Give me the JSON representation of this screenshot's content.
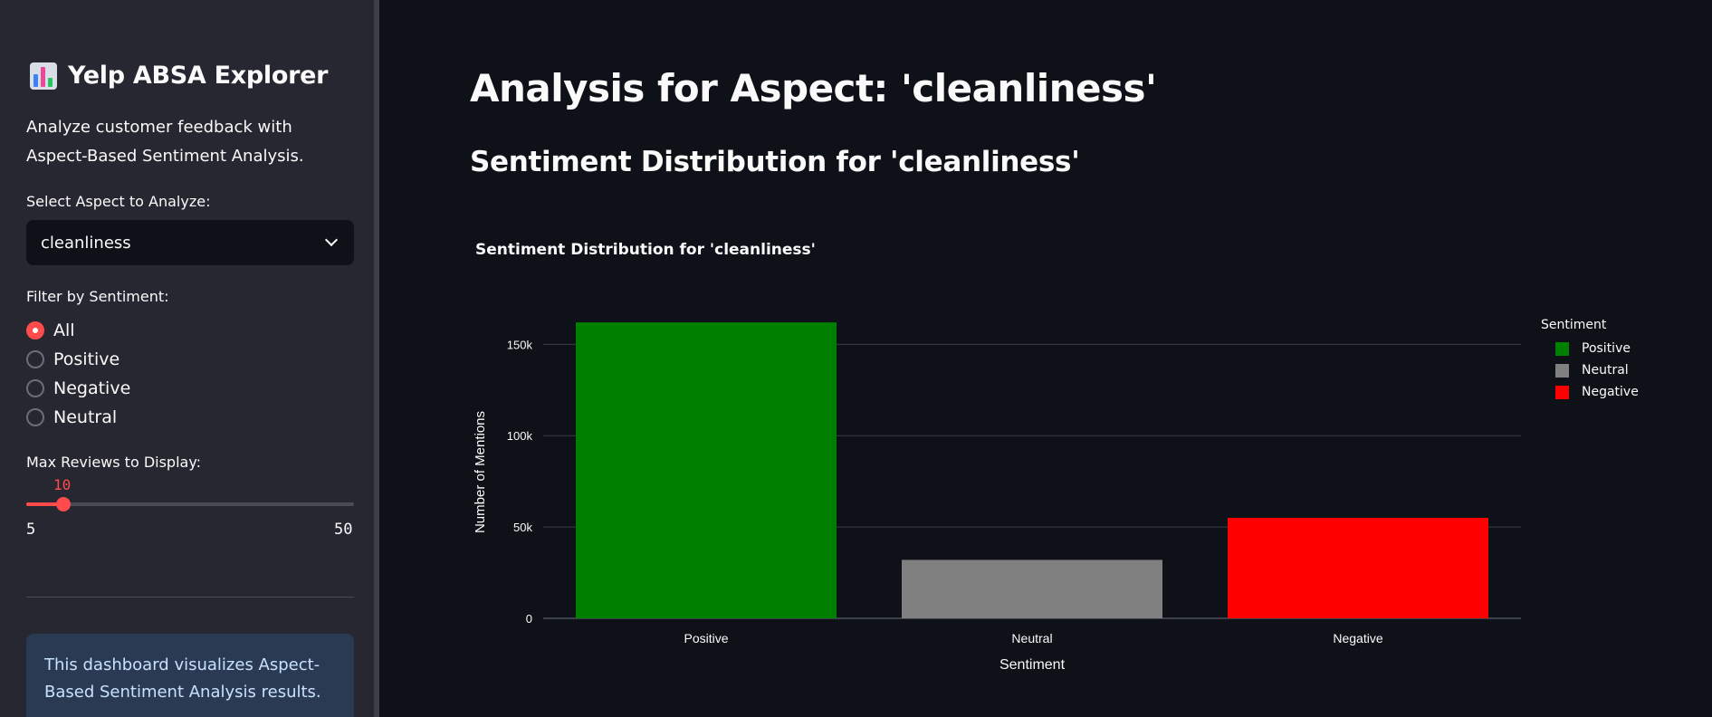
{
  "sidebar": {
    "app_title": "Yelp ABSA Explorer",
    "app_icon": "bar-chart-icon",
    "description": "Analyze customer feedback with Aspect-Based Sentiment Analysis.",
    "aspect_select": {
      "label": "Select Aspect to Analyze:",
      "value": "cleanliness"
    },
    "sentiment_filter": {
      "label": "Filter by Sentiment:",
      "options": [
        "All",
        "Positive",
        "Negative",
        "Neutral"
      ],
      "selected": "All"
    },
    "max_reviews": {
      "label": "Max Reviews to Display:",
      "value": "10",
      "min": "5",
      "max": "50",
      "fill_fraction": 0.111
    },
    "info": "This dashboard visualizes Aspect-Based Sentiment Analysis results."
  },
  "main": {
    "title": "Analysis for Aspect: 'cleanliness'",
    "subtitle": "Sentiment Distribution for 'cleanliness'"
  },
  "colors": {
    "accent": "#ff4b4b",
    "positive": "#008000",
    "neutral": "#808080",
    "negative": "#ff0000"
  },
  "chart_data": {
    "type": "bar",
    "title": "Sentiment Distribution for 'cleanliness'",
    "xlabel": "Sentiment",
    "ylabel": "Number of Mentions",
    "categories": [
      "Positive",
      "Neutral",
      "Negative"
    ],
    "values": [
      162000,
      32000,
      55000
    ],
    "colors": [
      "#008000",
      "#808080",
      "#ff0000"
    ],
    "ylim": [
      0,
      170000
    ],
    "yticks": [
      0,
      50000,
      100000,
      150000
    ],
    "ytick_labels": [
      "0",
      "50k",
      "100k",
      "150k"
    ],
    "grid": true,
    "legend": {
      "title": "Sentiment",
      "placement": "right",
      "entries": [
        "Positive",
        "Neutral",
        "Negative"
      ]
    }
  }
}
